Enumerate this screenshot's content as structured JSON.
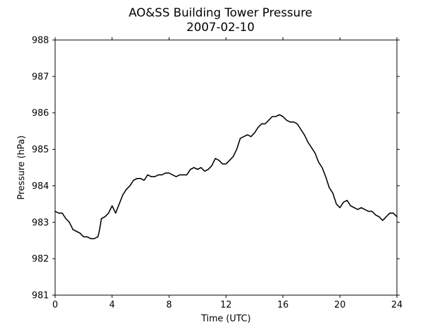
{
  "chart_data": {
    "type": "line",
    "title": "AO&SS Building Tower Pressure",
    "subtitle": "2007-02-10",
    "xlabel": "Time (UTC)",
    "ylabel": "Pressure (hPa)",
    "xlim": [
      0,
      24
    ],
    "ylim": [
      981,
      988
    ],
    "xticks": [
      0,
      4,
      8,
      12,
      16,
      20,
      24
    ],
    "yticks": [
      981,
      982,
      983,
      984,
      985,
      986,
      987,
      988
    ],
    "grid": false,
    "line_color": "#000000",
    "series": [
      {
        "x": [
          0,
          0.25,
          0.5,
          0.75,
          1.0,
          1.25,
          1.5,
          1.75,
          2.0,
          2.25,
          2.5,
          2.75,
          3.0,
          3.1,
          3.25,
          3.5,
          3.75,
          4.0,
          4.25,
          4.5,
          4.75,
          5.0,
          5.25,
          5.5,
          5.75,
          6.0,
          6.25,
          6.5,
          6.75,
          7.0,
          7.25,
          7.5,
          7.75,
          8.0,
          8.25,
          8.5,
          8.75,
          9.0,
          9.25,
          9.5,
          9.75,
          10.0,
          10.25,
          10.5,
          10.75,
          11.0,
          11.25,
          11.5,
          11.75,
          12.0,
          12.25,
          12.5,
          12.75,
          13.0,
          13.25,
          13.5,
          13.75,
          14.0,
          14.25,
          14.5,
          14.75,
          15.0,
          15.25,
          15.5,
          15.75,
          16.0,
          16.25,
          16.5,
          16.75,
          17.0,
          17.25,
          17.5,
          17.75,
          18.0,
          18.25,
          18.5,
          18.75,
          19.0,
          19.25,
          19.5,
          19.75,
          20.0,
          20.25,
          20.5,
          20.75,
          21.0,
          21.25,
          21.5,
          21.75,
          22.0,
          22.25,
          22.5,
          22.75,
          23.0,
          23.25,
          23.5,
          23.75,
          24.0
        ],
        "values": [
          983.3,
          983.25,
          983.25,
          983.1,
          983.0,
          982.8,
          982.75,
          982.7,
          982.6,
          982.6,
          982.55,
          982.55,
          982.6,
          982.75,
          983.1,
          983.15,
          983.25,
          983.45,
          983.25,
          983.5,
          983.75,
          983.9,
          984.0,
          984.15,
          984.2,
          984.2,
          984.15,
          984.3,
          984.25,
          984.25,
          984.3,
          984.3,
          984.35,
          984.35,
          984.3,
          984.25,
          984.3,
          984.3,
          984.3,
          984.45,
          984.5,
          984.45,
          984.5,
          984.4,
          984.45,
          984.55,
          984.75,
          984.7,
          984.6,
          984.6,
          984.7,
          984.8,
          985.0,
          985.3,
          985.35,
          985.4,
          985.35,
          985.45,
          985.6,
          985.7,
          985.7,
          985.8,
          985.9,
          985.9,
          985.95,
          985.9,
          985.8,
          985.75,
          985.75,
          985.7,
          985.55,
          985.4,
          985.2,
          985.05,
          984.9,
          984.65,
          984.5,
          984.25,
          983.95,
          983.8,
          983.5,
          983.4,
          983.55,
          983.6,
          983.45,
          983.4,
          983.35,
          983.4,
          983.35,
          983.3,
          983.3,
          983.2,
          983.15,
          983.05,
          983.15,
          983.25,
          983.25,
          983.15
        ]
      }
    ]
  }
}
